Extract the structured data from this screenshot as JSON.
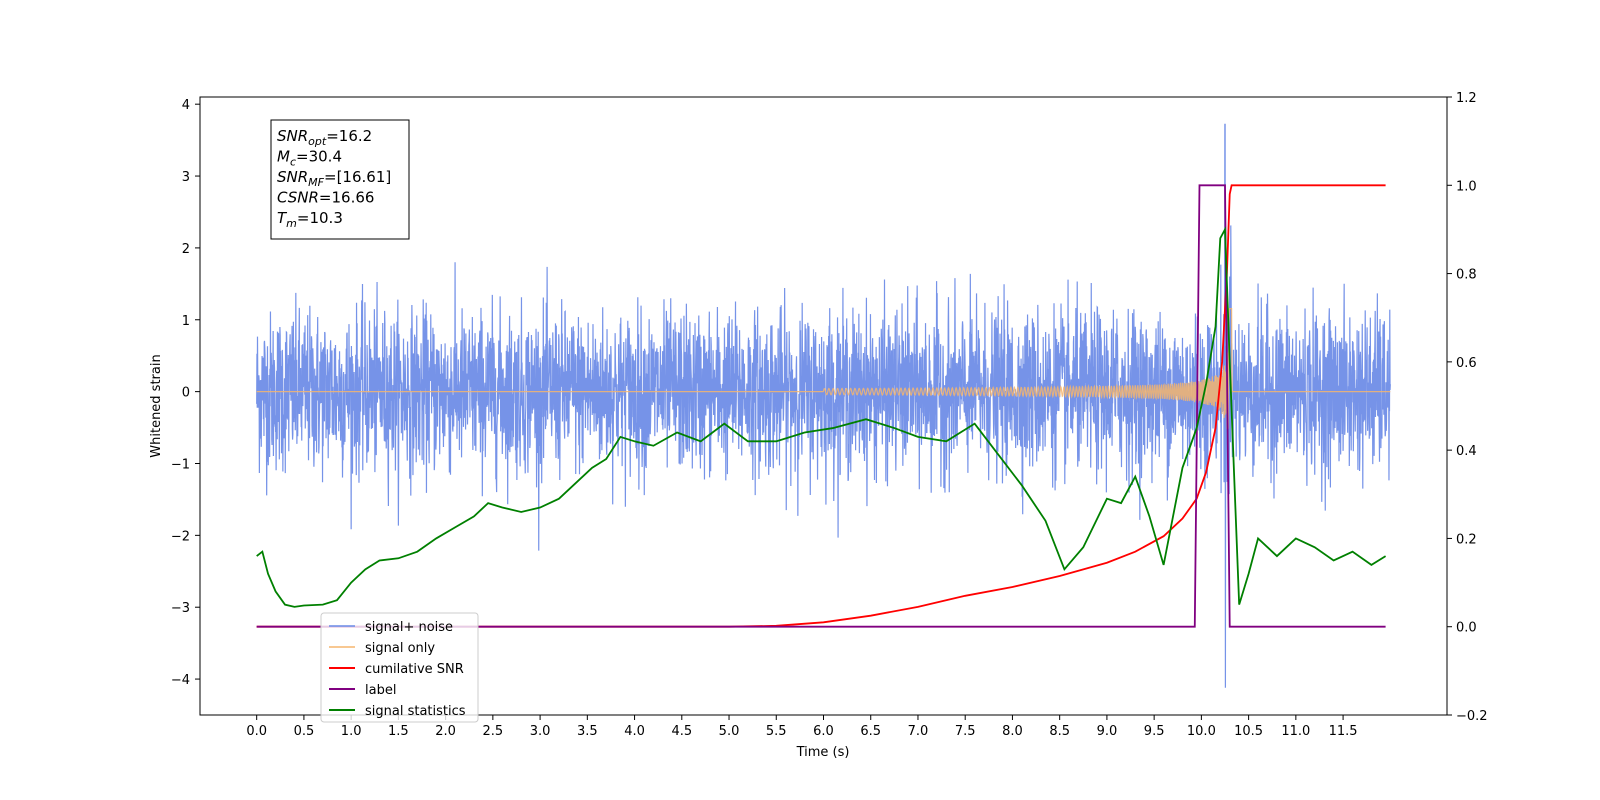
{
  "chart_data": {
    "type": "line",
    "title": "",
    "xlabel": "Time (s)",
    "ylabel": "Whitened strain",
    "y2label": "",
    "xlim": [
      -0.6,
      12.6
    ],
    "ylim": [
      -4.5,
      4.1
    ],
    "y2lim": [
      -0.2,
      1.2
    ],
    "xticks": [
      0.0,
      0.5,
      1.0,
      1.5,
      2.0,
      2.5,
      3.0,
      3.5,
      4.0,
      4.5,
      5.0,
      5.5,
      6.0,
      6.5,
      7.0,
      7.5,
      8.0,
      8.5,
      9.0,
      9.5,
      10.0,
      10.5,
      11.0,
      11.5
    ],
    "xtick_labels": [
      "0.0",
      "0.5",
      "1.0",
      "1.5",
      "2.0",
      "2.5",
      "3.0",
      "3.5",
      "4.0",
      "4.5",
      "5.0",
      "5.5",
      "6.0",
      "6.5",
      "7.0",
      "7.5",
      "8.0",
      "8.5",
      "9.0",
      "9.5",
      "10.0",
      "10.5",
      "11.0",
      "11.5"
    ],
    "yticks": [
      -4,
      -3,
      -2,
      -1,
      0,
      1,
      2,
      3,
      4
    ],
    "ytick_labels": [
      "−4",
      "−3",
      "−2",
      "−1",
      "0",
      "1",
      "2",
      "3",
      "4"
    ],
    "y2ticks": [
      -0.2,
      0.0,
      0.2,
      0.4,
      0.6,
      0.8,
      1.0,
      1.2
    ],
    "y2tick_labels": [
      "−0.2",
      "0.0",
      "0.2",
      "0.4",
      "0.6",
      "0.8",
      "1.0",
      "1.2"
    ],
    "grid": false,
    "legend": "lower-left",
    "series": [
      {
        "name": "signal+ noise",
        "axis": "left",
        "color": "#6a8ae6",
        "noise_std": 0.55,
        "x_range": [
          0,
          12.0
        ],
        "peak_x": 10.25,
        "peak_max": 3.72,
        "peak_min": -4.12
      },
      {
        "name": "signal only",
        "axis": "left",
        "color": "#f5b56e",
        "x_range": [
          0,
          12.0
        ],
        "chirp_start": 6.0,
        "merger_x": 10.3,
        "max_amplitude": 1.2
      },
      {
        "name": "cumilative SNR",
        "axis": "right",
        "color": "#ff0000",
        "x": [
          0,
          5.0,
          5.5,
          6.0,
          6.5,
          7.0,
          7.5,
          8.0,
          8.5,
          9.0,
          9.3,
          9.6,
          9.8,
          9.95,
          10.05,
          10.15,
          10.22,
          10.27,
          10.3,
          10.32,
          11.95
        ],
        "y": [
          0,
          0.0,
          0.002,
          0.01,
          0.025,
          0.045,
          0.07,
          0.09,
          0.115,
          0.145,
          0.17,
          0.205,
          0.245,
          0.29,
          0.35,
          0.45,
          0.6,
          0.8,
          0.98,
          1.0,
          1.0
        ]
      },
      {
        "name": "label",
        "axis": "right",
        "color": "#800080",
        "x": [
          0,
          9.93,
          9.98,
          10.25,
          10.3,
          11.95
        ],
        "y": [
          0,
          0,
          1,
          1,
          0,
          0
        ]
      },
      {
        "name": "signal statistics",
        "axis": "right",
        "color": "#008000",
        "x": [
          0,
          0.06,
          0.12,
          0.2,
          0.3,
          0.4,
          0.5,
          0.7,
          0.85,
          1.0,
          1.15,
          1.3,
          1.5,
          1.7,
          1.9,
          2.1,
          2.3,
          2.45,
          2.6,
          2.8,
          3.0,
          3.2,
          3.4,
          3.55,
          3.7,
          3.85,
          4.0,
          4.2,
          4.45,
          4.7,
          4.95,
          5.2,
          5.5,
          5.8,
          6.1,
          6.45,
          6.75,
          7.0,
          7.3,
          7.6,
          7.85,
          8.1,
          8.35,
          8.55,
          8.75,
          9.0,
          9.15,
          9.3,
          9.45,
          9.6,
          9.8,
          9.95,
          10.05,
          10.15,
          10.2,
          10.25,
          10.3,
          10.4,
          10.5,
          10.6,
          10.8,
          11.0,
          11.2,
          11.4,
          11.6,
          11.8,
          11.95
        ],
        "y": [
          0.16,
          0.17,
          0.12,
          0.08,
          0.05,
          0.045,
          0.048,
          0.05,
          0.06,
          0.1,
          0.13,
          0.15,
          0.155,
          0.17,
          0.2,
          0.225,
          0.25,
          0.28,
          0.27,
          0.26,
          0.27,
          0.29,
          0.33,
          0.36,
          0.38,
          0.43,
          0.42,
          0.41,
          0.44,
          0.42,
          0.46,
          0.42,
          0.42,
          0.44,
          0.45,
          0.47,
          0.45,
          0.43,
          0.42,
          0.46,
          0.39,
          0.32,
          0.24,
          0.13,
          0.18,
          0.29,
          0.28,
          0.34,
          0.25,
          0.14,
          0.36,
          0.45,
          0.55,
          0.68,
          0.88,
          0.9,
          0.6,
          0.05,
          0.12,
          0.2,
          0.16,
          0.2,
          0.18,
          0.15,
          0.17,
          0.14,
          0.16
        ]
      }
    ],
    "legend_entries": [
      "signal+ noise",
      "signal only",
      "cumilative SNR",
      "label",
      "signal statistics"
    ],
    "annotation": {
      "lines": [
        {
          "main": "SNR",
          "sub": "opt",
          "rest": "=16.2"
        },
        {
          "main": "M",
          "sub": "c",
          "rest": "=30.4"
        },
        {
          "main": "SNR",
          "sub": "MF",
          "rest": "=[16.61]"
        },
        {
          "main": "CSNR",
          "sub": "",
          "rest": "=16.66"
        },
        {
          "main": "T",
          "sub": "m",
          "rest": "=10.3"
        }
      ]
    }
  }
}
